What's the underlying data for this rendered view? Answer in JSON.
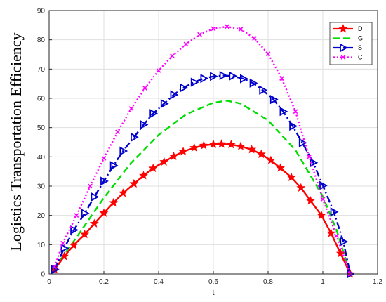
{
  "chart_data": {
    "type": "line",
    "title": "",
    "xlabel": "t",
    "ylabel": "Logistics Transportation Efficiency",
    "xlim": [
      0,
      1.2
    ],
    "ylim": [
      0,
      90
    ],
    "xticks": [
      "0",
      "0.2",
      "0.4",
      "0.6",
      "0.8",
      "1",
      "1.2"
    ],
    "yticks": [
      "0",
      "10",
      "20",
      "30",
      "40",
      "50",
      "60",
      "70",
      "80",
      "90"
    ],
    "grid": true,
    "legend_position": "top-right",
    "series": [
      {
        "name": "D",
        "color": "#ff0000",
        "line_style": "solid",
        "marker": "star",
        "x": [
          0.02,
          0.055,
          0.09,
          0.13,
          0.165,
          0.2,
          0.235,
          0.27,
          0.31,
          0.345,
          0.38,
          0.42,
          0.455,
          0.49,
          0.53,
          0.565,
          0.6,
          0.63,
          0.665,
          0.7,
          0.74,
          0.775,
          0.81,
          0.845,
          0.885,
          0.92,
          0.955,
          0.995,
          1.03,
          1.065,
          1.1
        ],
        "y": [
          1.5,
          6,
          9.8,
          13.5,
          17.2,
          20.8,
          24.3,
          27.6,
          30.8,
          33.6,
          36.1,
          38.3,
          40.2,
          41.8,
          43.1,
          43.9,
          44.3,
          44.4,
          44.2,
          43.6,
          42.5,
          40.9,
          38.8,
          36.2,
          33,
          29.4,
          25,
          20,
          13.9,
          7,
          0
        ]
      },
      {
        "name": "G",
        "color": "#00dd00",
        "line_style": "dashed",
        "marker": "none",
        "x": [
          0.02,
          0.1,
          0.2,
          0.3,
          0.4,
          0.5,
          0.6,
          0.65,
          0.7,
          0.8,
          0.9,
          1.0,
          1.05,
          1.1
        ],
        "y": [
          2,
          12.5,
          26,
          38,
          47.5,
          54.5,
          58.5,
          59.2,
          58.2,
          52.5,
          42.3,
          26.5,
          15,
          0
        ]
      },
      {
        "name": "S",
        "color": "#0000cc",
        "line_style": "dash-dot",
        "marker": "triangle-right",
        "x": [
          0.02,
          0.055,
          0.09,
          0.13,
          0.165,
          0.2,
          0.235,
          0.27,
          0.31,
          0.345,
          0.38,
          0.42,
          0.455,
          0.49,
          0.53,
          0.565,
          0.6,
          0.635,
          0.67,
          0.71,
          0.745,
          0.78,
          0.82,
          0.855,
          0.89,
          0.925,
          0.965,
          1.0,
          1.04,
          1.075,
          1.1
        ],
        "y": [
          1.5,
          8.8,
          15,
          20.7,
          26.3,
          31.7,
          37,
          42,
          46.7,
          51,
          54.8,
          58.2,
          61.2,
          63.6,
          65.5,
          66.8,
          67.5,
          67.8,
          67.6,
          66.7,
          65.2,
          62.8,
          59.6,
          55.5,
          50.5,
          44.8,
          38,
          30.2,
          21.2,
          11,
          0
        ]
      },
      {
        "name": "C",
        "color": "#ff00ff",
        "line_style": "dotted",
        "marker": "x",
        "x": [
          0.02,
          0.05,
          0.1,
          0.15,
          0.2,
          0.25,
          0.3,
          0.35,
          0.4,
          0.45,
          0.5,
          0.55,
          0.6,
          0.65,
          0.7,
          0.75,
          0.8,
          0.85,
          0.9,
          0.95,
          1.0,
          1.05,
          1.1
        ],
        "y": [
          2.5,
          10.5,
          20,
          30,
          39.5,
          48.5,
          56.5,
          63.5,
          69.5,
          74.5,
          78.5,
          81.8,
          83.8,
          84.5,
          83.6,
          80.5,
          75.2,
          66.8,
          55.5,
          40,
          25.5,
          13,
          0
        ]
      }
    ]
  }
}
